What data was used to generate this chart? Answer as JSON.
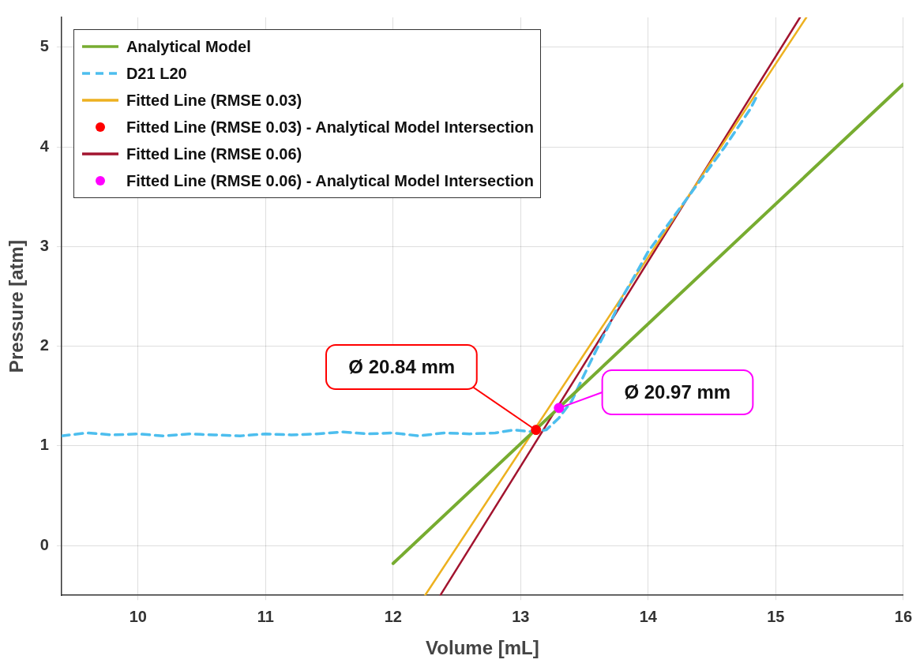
{
  "chart_data": {
    "type": "line",
    "xlabel": "Volume [mL]",
    "ylabel": "Pressure [atm]",
    "xlim": [
      9.4,
      16
    ],
    "xticks": [
      10,
      11,
      12,
      13,
      14,
      15,
      16
    ],
    "ylim": [
      -0.5,
      5.3
    ],
    "yticks": [
      0,
      1,
      2,
      3,
      4,
      5
    ],
    "grid": true,
    "legend": "top left",
    "series": [
      {
        "name": "Analytical Model",
        "color": "#77ac30",
        "x": [
          12,
          16
        ],
        "values": [
          -0.18,
          4.63
        ]
      },
      {
        "name": "D21 L20",
        "line_style": "dashed",
        "color": "#4dbeee",
        "x": [
          9.4,
          9.6,
          9.8,
          10.0,
          10.2,
          10.4,
          10.6,
          10.8,
          11.0,
          11.2,
          11.4,
          11.6,
          11.8,
          12.0,
          12.2,
          12.4,
          12.6,
          12.8,
          12.95,
          13.1,
          13.2,
          13.3,
          13.4,
          13.5,
          13.6,
          13.7,
          13.8,
          13.9,
          14.0,
          14.2,
          14.4,
          14.6,
          14.8,
          14.86
        ],
        "values": [
          1.1,
          1.13,
          1.11,
          1.12,
          1.1,
          1.12,
          1.11,
          1.1,
          1.12,
          1.11,
          1.12,
          1.14,
          1.12,
          1.13,
          1.1,
          1.13,
          1.12,
          1.13,
          1.16,
          1.14,
          1.16,
          1.28,
          1.45,
          1.72,
          1.98,
          2.23,
          2.5,
          2.72,
          2.95,
          3.3,
          3.65,
          4.0,
          4.38,
          4.53
        ]
      },
      {
        "name": "Fitted Line (RMSE 0.03)",
        "color": "#edb120",
        "x": [
          12.25,
          15.24
        ],
        "values": [
          -0.5,
          5.3
        ]
      },
      {
        "name": "Fitted Line (RMSE 0.03) - Analytical Model Intersection",
        "type": "scatter",
        "marker": "circle",
        "color": "#ff0000",
        "x": [
          13.12
        ],
        "values": [
          1.16
        ]
      },
      {
        "name": "Fitted Line (RMSE 0.06)",
        "color": "#a2142f",
        "x": [
          12.37,
          15.19
        ],
        "values": [
          -0.5,
          5.3
        ]
      },
      {
        "name": "Fitted Line (RMSE 0.06) - Analytical Model Intersection",
        "type": "scatter",
        "marker": "circle",
        "color": "#ff00ff",
        "x": [
          13.3
        ],
        "values": [
          1.38
        ]
      }
    ],
    "annotations": [
      {
        "text": "Ø 20.84 mm",
        "x": 13.12,
        "y": 1.16
      },
      {
        "text": "Ø 20.97 mm",
        "x": 13.3,
        "y": 1.38
      }
    ]
  }
}
